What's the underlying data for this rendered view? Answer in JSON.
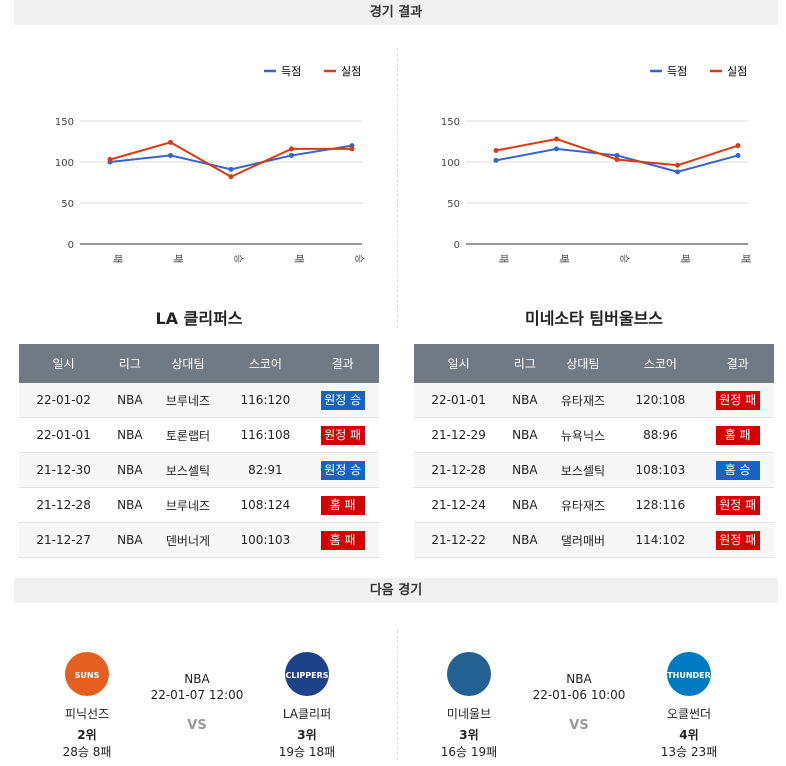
{
  "results_header": "경기 결과",
  "charts": [
    {
      "type": "line",
      "categories": [
        "패",
        "패",
        "승",
        "패",
        "승"
      ],
      "series": [
        {
          "name": "득점",
          "color": "#3366cc",
          "values": [
            100,
            108,
            91,
            108,
            120
          ]
        },
        {
          "name": "실점",
          "color": "#dc3912",
          "values": [
            103,
            124,
            82,
            116,
            116
          ]
        }
      ],
      "ylim": [
        0,
        150
      ],
      "yticks": [
        0,
        50,
        100,
        150
      ],
      "grid": true
    },
    {
      "type": "line",
      "categories": [
        "패",
        "패",
        "승",
        "패",
        "패"
      ],
      "series": [
        {
          "name": "득점",
          "color": "#3366cc",
          "values": [
            102,
            116,
            108,
            88,
            108
          ]
        },
        {
          "name": "실점",
          "color": "#dc3912",
          "values": [
            114,
            128,
            103,
            96,
            120
          ]
        }
      ],
      "ylim": [
        0,
        150
      ],
      "yticks": [
        0,
        50,
        100,
        150
      ],
      "grid": true
    }
  ],
  "teams": [
    {
      "title": "LA 클리퍼스",
      "table": {
        "columns": [
          "일시",
          "리그",
          "상대팀",
          "스코어",
          "결과"
        ],
        "rows": [
          [
            "22-01-02",
            "NBA",
            "브루네즈",
            "116:120",
            "원정 승"
          ],
          [
            "22-01-01",
            "NBA",
            "토론랩터",
            "116:108",
            "원정 패"
          ],
          [
            "21-12-30",
            "NBA",
            "보스셀틱",
            "82:91",
            "원정 승"
          ],
          [
            "21-12-28",
            "NBA",
            "브루네즈",
            "108:124",
            "홈 패"
          ],
          [
            "21-12-27",
            "NBA",
            "덴버너게",
            "100:103",
            "홈 패"
          ]
        ],
        "result_colors": [
          "#1565c0",
          "#d50000",
          "#1565c0",
          "#d50000",
          "#d50000"
        ]
      }
    },
    {
      "title": "미네소타 팀버울브스",
      "table": {
        "columns": [
          "일시",
          "리그",
          "상대팀",
          "스코어",
          "결과"
        ],
        "rows": [
          [
            "22-01-01",
            "NBA",
            "유타재즈",
            "120:108",
            "원정 패"
          ],
          [
            "21-12-29",
            "NBA",
            "뉴욕닉스",
            "88:96",
            "홈 패"
          ],
          [
            "21-12-28",
            "NBA",
            "보스셀틱",
            "108:103",
            "홈 승"
          ],
          [
            "21-12-24",
            "NBA",
            "유타재즈",
            "128:116",
            "원정 패"
          ],
          [
            "21-12-22",
            "NBA",
            "댈러매버",
            "114:102",
            "원정 패"
          ]
        ],
        "result_colors": [
          "#d50000",
          "#d50000",
          "#1565c0",
          "#d50000",
          "#d50000"
        ]
      }
    }
  ],
  "next_header": "다음 경기",
  "games": [
    {
      "league": "NBA",
      "time": "22-01-07 12:00",
      "vs": "VS",
      "home": {
        "logo": "SUNS",
        "logo_color": "#e56020",
        "name": "피닉선즈",
        "rank": "2위",
        "record": "28승 8패"
      },
      "away": {
        "logo": "CLIPPERS",
        "logo_color": "#1d428a",
        "name": "LA클리퍼",
        "rank": "3위",
        "record": "19승 18패"
      }
    },
    {
      "league": "NBA",
      "time": "22-01-06 10:00",
      "vs": "VS",
      "home": {
        "logo": "",
        "logo_color": "#236192",
        "name": "미네울브",
        "rank": "3위",
        "record": "16승 19패"
      },
      "away": {
        "logo": "THUNDER",
        "logo_color": "#007ac1",
        "name": "오클썬더",
        "rank": "4위",
        "record": "13승 23패"
      }
    }
  ]
}
